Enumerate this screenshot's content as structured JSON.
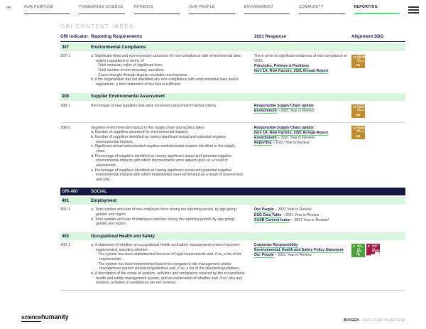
{
  "page_number": "146",
  "nav": {
    "items": [
      {
        "label": "OUR PURPOSE",
        "active": false
      },
      {
        "label": "PIONEERING SCIENCE",
        "active": false
      },
      {
        "label": "PATIENTS",
        "active": false
      },
      {
        "label": "OUR PEOPLE",
        "active": false
      },
      {
        "label": "ENVIRONMENT",
        "active": false
      },
      {
        "label": "COMMUNITY",
        "active": false
      },
      {
        "label": "REPORTING",
        "active": true
      }
    ],
    "menu_icon": "hamburger-icon"
  },
  "title": "GRI CONTENT INDEX",
  "colors": {
    "accent_green": "#57DA7B",
    "band_mint": "#D8F5DD",
    "navy": "#15153F",
    "sdg12": "#BF8B2E",
    "sdg3": "#4C9F38",
    "sdg8": "#A21942"
  },
  "table": {
    "headers": [
      "GRI indicator",
      "Reporting Requirements",
      "2021 Response",
      "Alignment SDG"
    ],
    "sections": [
      {
        "band": {
          "num": "307",
          "title": "Environmental Compliance",
          "dark": false
        },
        "rows": [
          {
            "id": "307-1",
            "req": [
              {
                "t": "a. Significant fines and non-monetary sanctions for non-compliance with environmental laws and/or regulations in terms of:",
                "s": "item"
              },
              {
                "t": "Total monetary value of significant fines.",
                "s": "bullet"
              },
              {
                "t": "Total number of non-monetary sanctions.",
                "s": "bullet"
              },
              {
                "t": "Cases brought through dispute resolution mechanisms.",
                "s": "bullet"
              },
              {
                "t": "b. If the organization has not identified any non-compliance with environmental laws and/or regulations, a brief statement of this fact is sufficient.",
                "s": "item"
              }
            ],
            "resp": [
              [
                {
                  "t": "There were no significant instances of non-compliance in 2021.",
                  "link": false
                }
              ],
              [
                {
                  "t": "Principles, Policies & Positions",
                  "link": true
                }
              ],
              [
                {
                  "t": "Item 1A, Risk Factors, 2021 Annual Report",
                  "link": true
                }
              ]
            ],
            "sdg": [
              "sdg12"
            ]
          }
        ]
      },
      {
        "band": {
          "num": "308",
          "title": "Supplier Environmental Assessment",
          "dark": false
        },
        "rows": [
          {
            "id": "308-1",
            "req": [
              {
                "t": "Percentage of new suppliers that were screened using environmental criteria.",
                "s": "plain"
              }
            ],
            "resp": [
              [
                {
                  "t": "Responsible Supply Chain update",
                  "link": true
                }
              ],
              [
                {
                  "t": "Environment",
                  "link": true
                },
                {
                  "t": " – 2021 Year in Review",
                  "link": false
                }
              ]
            ],
            "sdg": [
              "sdg12"
            ]
          },
          {
            "id": "308-2",
            "req": [
              {
                "t": "Negative environmental impacts in the supply chain and actions taken",
                "s": "plain"
              },
              {
                "t": "a. Number of suppliers assessed for environmental impacts.",
                "s": "item"
              },
              {
                "t": "b. Number of suppliers identified as having significant actual and potential negative environmental impacts.",
                "s": "item"
              },
              {
                "t": "c. Significant actual and potential negative environmental impacts identified in the supply chain.",
                "s": "item"
              },
              {
                "t": "d. Percentage of suppliers identified as having significant actual and potential negative environmental impacts with which improvements were agreed upon as a result of assessment.",
                "s": "item"
              },
              {
                "t": "e. Percentage of suppliers identified as having significant actual and potential negative environmental impacts with which relationships were terminated as a result of assessment, and why.",
                "s": "item"
              }
            ],
            "resp": [
              [
                {
                  "t": "Responsible Supply Chain update",
                  "link": true
                }
              ],
              [
                {
                  "t": "Item 1A, Risk Factors, 2021 Annual Report",
                  "link": true
                }
              ],
              [
                {
                  "t": "Environment",
                  "link": true
                },
                {
                  "t": " – 2021 Year in Review",
                  "link": false
                }
              ],
              [
                {
                  "t": "Reporting",
                  "link": true
                },
                {
                  "t": " – 2021 Year in Review",
                  "link": false
                }
              ]
            ],
            "sdg": [
              "sdg12"
            ]
          }
        ]
      },
      {
        "band": {
          "num": "GRI 400",
          "title": "SOCIAL",
          "dark": true
        },
        "rows": []
      },
      {
        "band": {
          "num": "401",
          "title": "Employment",
          "dark": false
        },
        "rows": [
          {
            "id": "401-1",
            "req": [
              {
                "t": "a. Total number and rate of new employee hires during the reporting period, by age group, gender and region.",
                "s": "item"
              },
              {
                "t": "b. Total number and rate of employee turnover during the reporting period, by age group, gender and region.",
                "s": "item"
              }
            ],
            "resp": [
              [
                {
                  "t": "Our People",
                  "link": true
                },
                {
                  "t": " – 2021 Year in Review",
                  "link": false
                }
              ],
              [
                {
                  "t": "ESG Data Table",
                  "link": true
                },
                {
                  "t": " – 2021 Year in Review",
                  "link": false
                }
              ],
              [
                {
                  "t": "SASB Content Index",
                  "link": true
                },
                {
                  "t": " – 2021 Year in Review*",
                  "link": false
                }
              ]
            ],
            "sdg": []
          }
        ]
      },
      {
        "band": {
          "num": "403",
          "title": "Occupational Health and Safety",
          "dark": false
        },
        "rows": [
          {
            "id": "403-1",
            "req": [
              {
                "t": "a. A statement of whether an occupational health and safety management system has been implemented, including whether:",
                "s": "item"
              },
              {
                "t": "The system has been implemented because of legal requirements and, if so, a list of the requirements.",
                "s": "bullet"
              },
              {
                "t": "The system has been implemented based on recognized risk management and/or management system standards/guidelines and, if so, a list of the standards/guidelines.",
                "s": "bullet"
              },
              {
                "t": "b. A description of the scope of workers, activities and workplaces covered by the occupational health and safety management system, and an explanation of whether and, if so, why any workers, activities or workplaces are not covered.",
                "s": "item"
              }
            ],
            "resp": [
              [
                {
                  "t": "Corporate Responsibility",
                  "link": true
                }
              ],
              [
                {
                  "t": "Environmental, Health and Safety Policy Statement",
                  "link": true
                }
              ],
              [
                {
                  "t": "Our People",
                  "link": true
                },
                {
                  "t": " – 2021 Year in Review",
                  "link": false
                }
              ]
            ],
            "sdg": [
              "sdg3",
              "sdg8"
            ]
          }
        ]
      }
    ]
  },
  "sdg_icons": {
    "sdg12": {
      "num": "12",
      "title": "RESPONSIBLE CONSUMPTION AND PRODUCTION",
      "color": "#BF8B2E",
      "glyph": "∞"
    },
    "sdg3": {
      "num": "3",
      "title": "GOOD HEALTH AND WELL-BEING",
      "color": "#4C9F38",
      "glyph": "∿"
    },
    "sdg8": {
      "num": "8",
      "title": "DECENT WORK AND ECONOMIC GROWTH",
      "color": "#A21942",
      "glyph": "▂▄▆"
    }
  },
  "footer": {
    "logo_part1": "science",
    "logo_part2": "humanity",
    "brand": "BIOGEN",
    "edition": "2021 YEAR IN REVIEW"
  }
}
